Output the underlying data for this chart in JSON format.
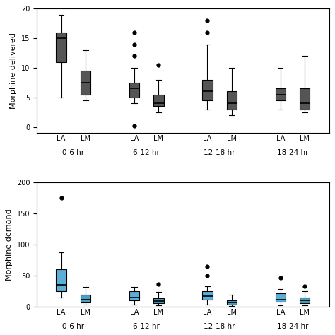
{
  "top_chart": {
    "ylabel": "Morphine delivered",
    "ylim": [
      -1,
      20
    ],
    "yticks": [
      0,
      5,
      10,
      15,
      20
    ],
    "groups": [
      "0-6 hr",
      "6-12 hr",
      "12-18 hr",
      "18-24 hr"
    ],
    "box_color": "#555555",
    "box_data": {
      "LA": [
        {
          "whislo": 5,
          "q1": 11,
          "med": 15,
          "q3": 16,
          "whishi": 19,
          "fliers": []
        },
        {
          "whislo": 4,
          "q1": 5,
          "med": 6.5,
          "q3": 7.5,
          "whishi": 10,
          "fliers": [
            0.2,
            12,
            14,
            16
          ]
        },
        {
          "whislo": 3,
          "q1": 4.5,
          "med": 6,
          "q3": 8,
          "whishi": 14,
          "fliers": [
            16,
            18
          ]
        },
        {
          "whislo": 3,
          "q1": 4.5,
          "med": 5.5,
          "q3": 6.5,
          "whishi": 10,
          "fliers": []
        }
      ],
      "LM": [
        {
          "whislo": 4.5,
          "q1": 5.5,
          "med": 7.5,
          "q3": 9.5,
          "whishi": 13,
          "fliers": []
        },
        {
          "whislo": 2.5,
          "q1": 3.5,
          "med": 4,
          "q3": 5.5,
          "whishi": 8,
          "fliers": [
            10.5
          ]
        },
        {
          "whislo": 2,
          "q1": 3,
          "med": 4,
          "q3": 6,
          "whishi": 10,
          "fliers": []
        },
        {
          "whislo": 2.5,
          "q1": 3,
          "med": 4,
          "q3": 6.5,
          "whishi": 12,
          "fliers": []
        }
      ]
    }
  },
  "bottom_chart": {
    "ylabel": "Morphine demand",
    "ylim": [
      0,
      200
    ],
    "yticks": [
      0,
      50,
      100,
      150,
      200
    ],
    "groups": [
      "0-6 hr",
      "6-12 hr",
      "12-18 hr",
      "18-24 hr"
    ],
    "la_color": "#5bafd6",
    "lm_color": "#4a9fc0",
    "box_data": {
      "LA": [
        {
          "whislo": 15,
          "q1": 25,
          "med": 35,
          "q3": 60,
          "whishi": 88,
          "fliers": [
            175
          ]
        },
        {
          "whislo": 3,
          "q1": 10,
          "med": 15,
          "q3": 25,
          "whishi": 32,
          "fliers": []
        },
        {
          "whislo": 3,
          "q1": 12,
          "med": 17,
          "q3": 25,
          "whishi": 33,
          "fliers": [
            50,
            65
          ]
        },
        {
          "whislo": 2,
          "q1": 8,
          "med": 12,
          "q3": 22,
          "whishi": 28,
          "fliers": [
            47
          ]
        }
      ],
      "LM": [
        {
          "whislo": 3,
          "q1": 7,
          "med": 12,
          "q3": 20,
          "whishi": 32,
          "fliers": []
        },
        {
          "whislo": 2,
          "q1": 6,
          "med": 9,
          "q3": 14,
          "whishi": 24,
          "fliers": [
            37
          ]
        },
        {
          "whislo": 1,
          "q1": 4,
          "med": 7,
          "q3": 10,
          "whishi": 20,
          "fliers": []
        },
        {
          "whislo": 2,
          "q1": 6,
          "med": 10,
          "q3": 15,
          "whishi": 25,
          "fliers": [
            33
          ]
        }
      ]
    }
  },
  "background_color": "#ffffff",
  "border_color": "#000000",
  "group_centers": [
    1.5,
    4.5,
    7.5,
    10.5
  ],
  "xlim": [
    0,
    12
  ]
}
